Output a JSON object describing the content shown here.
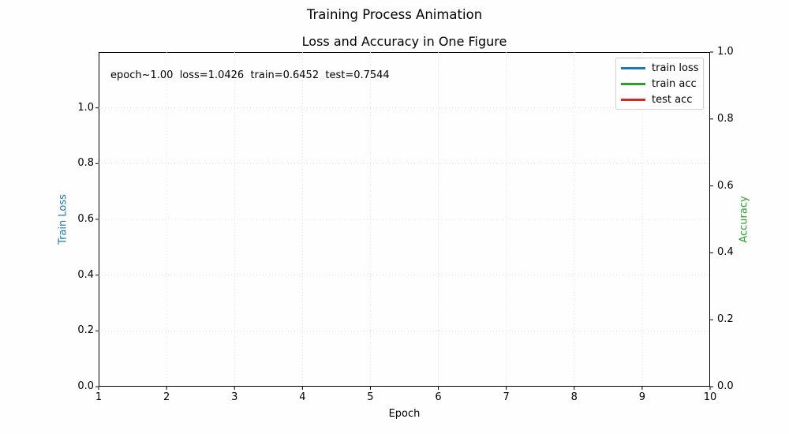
{
  "figure": {
    "suptitle": "Training Process Animation",
    "title": "Loss and Accuracy in One Figure",
    "annotation": "epoch~1.00  loss=1.0426  train=0.6452  test=0.7544",
    "xlabel": "Epoch",
    "ylabel_left": "Train Loss",
    "ylabel_right": "Accuracy",
    "colors": {
      "train_loss": "#1f77b4",
      "train_acc": "#2ca02c",
      "test_acc": "#d62728",
      "grid": "#d9d9d9"
    },
    "legend": [
      {
        "label": "train loss",
        "color": "#1f77b4"
      },
      {
        "label": "train acc",
        "color": "#2ca02c"
      },
      {
        "label": "test acc",
        "color": "#d62728"
      }
    ],
    "x_ticks": [
      "1",
      "2",
      "3",
      "4",
      "5",
      "6",
      "7",
      "8",
      "9",
      "10"
    ],
    "y_left_ticks": [
      "0.0",
      "0.2",
      "0.4",
      "0.6",
      "0.8",
      "1.0"
    ],
    "y_right_ticks": [
      "0.0",
      "0.2",
      "0.4",
      "0.6",
      "0.8",
      "1.0"
    ]
  },
  "chart_data": {
    "type": "line",
    "title": "Loss and Accuracy in One Figure",
    "subtitle": "Training Process Animation",
    "xlabel": "Epoch",
    "ylabel": "Train Loss",
    "ylabel_right": "Accuracy",
    "xlim": [
      1,
      10
    ],
    "ylim": [
      0,
      1.2
    ],
    "ylim_right": [
      0,
      1.0
    ],
    "x_ticks": [
      1,
      2,
      3,
      4,
      5,
      6,
      7,
      8,
      9,
      10
    ],
    "y_ticks": [
      0.0,
      0.2,
      0.4,
      0.6,
      0.8,
      1.0
    ],
    "y_ticks_right": [
      0.0,
      0.2,
      0.4,
      0.6,
      0.8,
      1.0
    ],
    "grid": true,
    "legend_position": "upper right",
    "annotations": [
      "epoch~1.00  loss=1.0426  train=0.6452  test=0.7544"
    ],
    "series": [
      {
        "name": "train loss",
        "axis": "left",
        "x": [],
        "values": []
      },
      {
        "name": "train acc",
        "axis": "right",
        "x": [],
        "values": []
      },
      {
        "name": "test acc",
        "axis": "right",
        "x": [],
        "values": []
      }
    ]
  }
}
